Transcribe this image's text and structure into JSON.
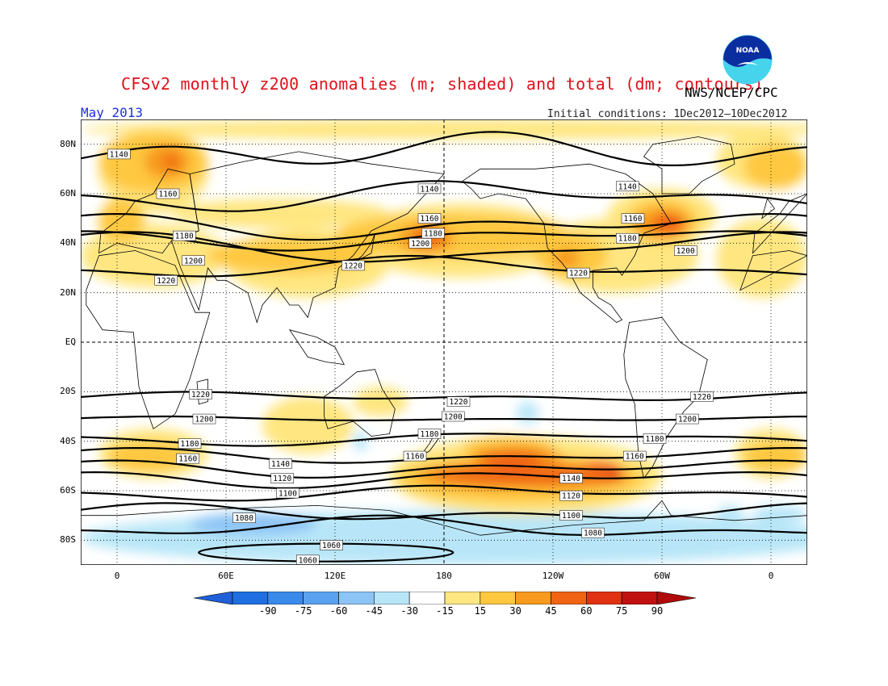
{
  "header": {
    "title": "CFSv2 monthly z200 anomalies (m; shaded) and total (dm; contours)",
    "agency": "NWS/NCEP/CPC",
    "month": "May 2013",
    "initial_conditions": "Initial conditions: 1Dec2012–10Dec2012",
    "logo_text": "NOAA"
  },
  "axes": {
    "lat_labels": [
      "80N",
      "60N",
      "40N",
      "20N",
      "EQ",
      "20S",
      "40S",
      "60S",
      "80S"
    ],
    "lat_values": [
      80,
      60,
      40,
      20,
      0,
      -20,
      -40,
      -60,
      -80
    ],
    "lon_labels": [
      "0",
      "60E",
      "120E",
      "180",
      "120W",
      "60W",
      "0"
    ],
    "lon_values": [
      0,
      60,
      120,
      180,
      240,
      300,
      360
    ],
    "lon_range": [
      -20,
      380
    ],
    "lat_range": [
      -90,
      90
    ]
  },
  "colorbar": {
    "levels": [
      "-90",
      "-75",
      "-60",
      "-45",
      "-30",
      "-15",
      "15",
      "30",
      "45",
      "60",
      "75",
      "90"
    ],
    "colors": [
      "#1f6fe0",
      "#3a8aea",
      "#5aa2f0",
      "#8cc4f6",
      "#b8e6f8",
      "#ffffff",
      "#ffe680",
      "#ffc840",
      "#f79a1e",
      "#f06414",
      "#e03212",
      "#c01010"
    ],
    "end_low_color": "#1f5fd8",
    "end_high_color": "#b00a0a"
  },
  "contour_labels": [
    {
      "text": "1140",
      "lon": 1,
      "lat": 76
    },
    {
      "text": "1160",
      "lon": 28,
      "lat": 60
    },
    {
      "text": "1180",
      "lon": 37,
      "lat": 43
    },
    {
      "text": "1200",
      "lon": 42,
      "lat": 33
    },
    {
      "text": "1220",
      "lon": 27,
      "lat": 25
    },
    {
      "text": "1140",
      "lon": 172,
      "lat": 62
    },
    {
      "text": "1160",
      "lon": 172,
      "lat": 50
    },
    {
      "text": "1180",
      "lon": 174,
      "lat": 44
    },
    {
      "text": "1200",
      "lon": 167,
      "lat": 40
    },
    {
      "text": "1220",
      "lon": 130,
      "lat": 31
    },
    {
      "text": "1140",
      "lon": 281,
      "lat": 63
    },
    {
      "text": "1160",
      "lon": 284,
      "lat": 50
    },
    {
      "text": "1180",
      "lon": 281,
      "lat": 42
    },
    {
      "text": "1200",
      "lon": 313,
      "lat": 37
    },
    {
      "text": "1220",
      "lon": 254,
      "lat": 28
    },
    {
      "text": "1220",
      "lon": 46,
      "lat": -21
    },
    {
      "text": "1200",
      "lon": 48,
      "lat": -31
    },
    {
      "text": "1180",
      "lon": 40,
      "lat": -41
    },
    {
      "text": "1160",
      "lon": 39,
      "lat": -47
    },
    {
      "text": "1140",
      "lon": 90,
      "lat": -49
    },
    {
      "text": "1120",
      "lon": 91,
      "lat": -55
    },
    {
      "text": "1100",
      "lon": 94,
      "lat": -61
    },
    {
      "text": "1080",
      "lon": 70,
      "lat": -71
    },
    {
      "text": "1060",
      "lon": 118,
      "lat": -82
    },
    {
      "text": "1060",
      "lon": 105,
      "lat": -88
    },
    {
      "text": "1220",
      "lon": 188,
      "lat": -24
    },
    {
      "text": "1200",
      "lon": 185,
      "lat": -30
    },
    {
      "text": "1180",
      "lon": 172,
      "lat": -37
    },
    {
      "text": "1160",
      "lon": 164,
      "lat": -46
    },
    {
      "text": "1140",
      "lon": 250,
      "lat": -55
    },
    {
      "text": "1120",
      "lon": 250,
      "lat": -62
    },
    {
      "text": "1100",
      "lon": 250,
      "lat": -70
    },
    {
      "text": "1080",
      "lon": 262,
      "lat": -77
    },
    {
      "text": "1220",
      "lon": 322,
      "lat": -22
    },
    {
      "text": "1200",
      "lon": 314,
      "lat": -31
    },
    {
      "text": "1180",
      "lon": 296,
      "lat": -39
    },
    {
      "text": "1160",
      "lon": 285,
      "lat": -46
    }
  ]
}
